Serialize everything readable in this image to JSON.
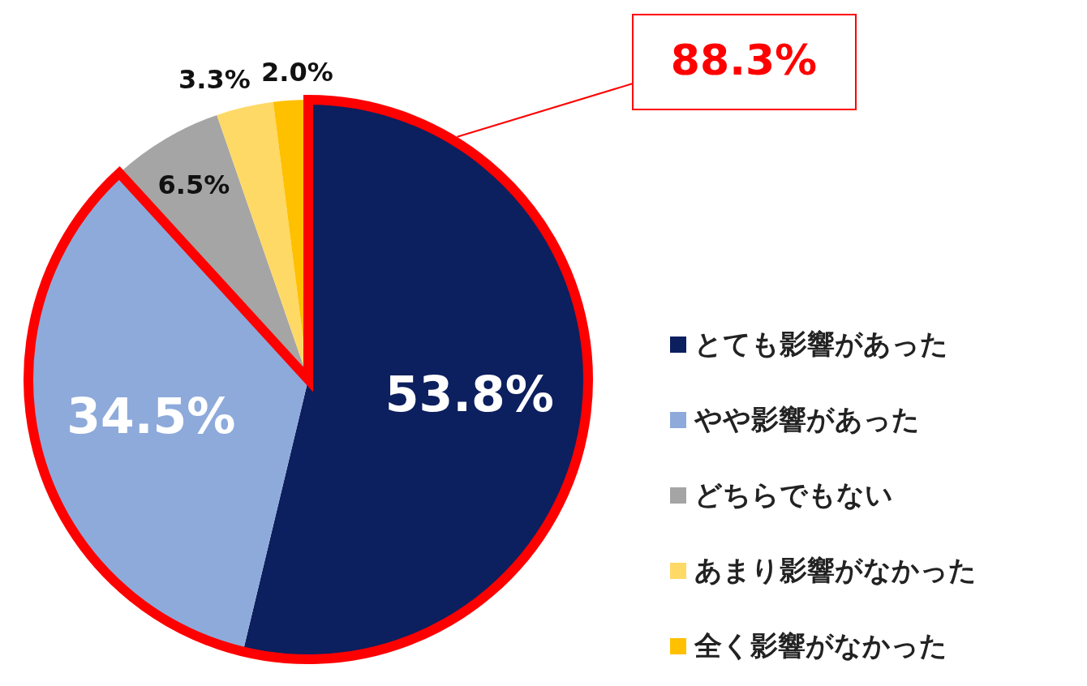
{
  "chart_data": {
    "type": "pie",
    "categories": [
      "とても影響があった",
      "やや影響があった",
      "どちらでもない",
      "あまり影響がなかった",
      "全く影響がなかった"
    ],
    "values": [
      53.8,
      34.5,
      6.5,
      3.3,
      2.0
    ],
    "colors": [
      "#0c1f5e",
      "#8eaadb",
      "#a5a5a5",
      "#ffd966",
      "#ffc000"
    ],
    "value_labels": [
      "53.8%",
      "34.5%",
      "6.5%",
      "3.3%",
      "2.0%"
    ],
    "annotations": [
      "88.3%"
    ],
    "legend": "right"
  }
}
